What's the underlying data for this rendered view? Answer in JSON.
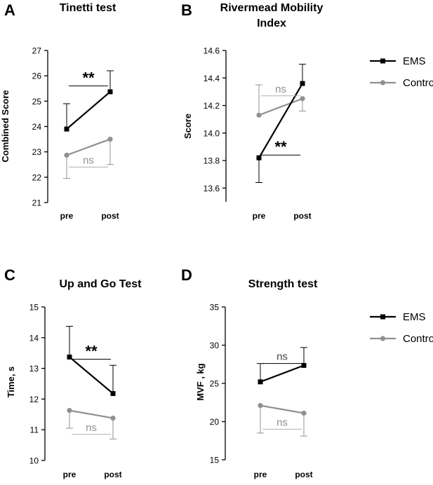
{
  "figure": {
    "legend": {
      "ems_label": "EMS",
      "control_label": "Control"
    }
  },
  "colors": {
    "ems": "#000000",
    "control": "#909090",
    "axis": "#000000",
    "annotation_ns": "#909090"
  },
  "chart_data": [
    {
      "panel_letter": "A",
      "type": "line",
      "title": "Tinetti test",
      "xlabel": "",
      "ylabel": "Combined Score",
      "categories": [
        "pre",
        "post"
      ],
      "ylim": [
        21,
        27
      ],
      "yticks": [
        21,
        22,
        23,
        24,
        25,
        26,
        27
      ],
      "series": [
        {
          "name": "EMS",
          "marker": "square",
          "values": [
            23.9,
            25.37
          ],
          "err_upper": [
            24.9,
            26.2
          ],
          "err_lower": [
            23.9,
            25.37
          ]
        },
        {
          "name": "Control",
          "marker": "circle",
          "values": [
            22.87,
            23.5
          ],
          "err_upper": [
            22.87,
            23.5
          ],
          "err_lower": [
            21.95,
            22.5
          ]
        }
      ],
      "annotations": [
        {
          "text": "**",
          "series": "EMS",
          "y": 25.6,
          "style": "star"
        },
        {
          "text": "ns",
          "series": "Control",
          "y": 22.4,
          "style": "ns"
        }
      ]
    },
    {
      "panel_letter": "B",
      "type": "line",
      "title": "Rivermead Mobility Index",
      "xlabel": "",
      "ylabel": "Score",
      "categories": [
        "pre",
        "post"
      ],
      "ylim": [
        13.5,
        14.6
      ],
      "yticks": [
        13.6,
        13.8,
        14.0,
        14.2,
        14.4,
        14.6
      ],
      "tick_decimals": 1,
      "series": [
        {
          "name": "EMS",
          "marker": "square",
          "values": [
            13.82,
            14.36
          ],
          "err_upper": [
            13.82,
            14.5
          ],
          "err_lower": [
            13.64,
            14.36
          ]
        },
        {
          "name": "Control",
          "marker": "circle",
          "values": [
            14.13,
            14.25
          ],
          "err_upper": [
            14.35,
            14.25
          ],
          "err_lower": [
            14.13,
            14.16
          ]
        }
      ],
      "annotations": [
        {
          "text": "**",
          "series": "EMS",
          "y": 13.84,
          "style": "star"
        },
        {
          "text": "ns",
          "series": "Control",
          "y": 14.27,
          "style": "ns"
        }
      ]
    },
    {
      "panel_letter": "C",
      "type": "line",
      "title": "Up and Go Test",
      "xlabel": "",
      "ylabel": "Time, s",
      "categories": [
        "pre",
        "post"
      ],
      "ylim": [
        10,
        15
      ],
      "yticks": [
        10,
        11,
        12,
        13,
        14,
        15
      ],
      "series": [
        {
          "name": "EMS",
          "marker": "square",
          "values": [
            13.37,
            12.18
          ],
          "err_upper": [
            14.37,
            13.1
          ],
          "err_lower": [
            13.37,
            12.18
          ]
        },
        {
          "name": "Control",
          "marker": "circle",
          "values": [
            11.63,
            11.38
          ],
          "err_upper": [
            11.63,
            11.38
          ],
          "err_lower": [
            11.05,
            10.7
          ]
        }
      ],
      "annotations": [
        {
          "text": "**",
          "series": "EMS",
          "y": 13.3,
          "style": "star"
        },
        {
          "text": "ns",
          "series": "Control",
          "y": 10.85,
          "style": "ns"
        }
      ]
    },
    {
      "panel_letter": "D",
      "type": "line",
      "title": "Strength test",
      "xlabel": "",
      "ylabel": "MVF , kg",
      "categories": [
        "pre",
        "post"
      ],
      "ylim": [
        15,
        35
      ],
      "yticks": [
        15,
        20,
        25,
        30,
        35
      ],
      "series": [
        {
          "name": "EMS",
          "marker": "square",
          "values": [
            25.2,
            27.35
          ],
          "err_upper": [
            27.6,
            29.7
          ],
          "err_lower": [
            25.2,
            27.35
          ]
        },
        {
          "name": "Control",
          "marker": "circle",
          "values": [
            22.1,
            21.1
          ],
          "err_upper": [
            22.1,
            21.1
          ],
          "err_lower": [
            18.5,
            18.1
          ]
        }
      ],
      "annotations": [
        {
          "text": "ns",
          "series": "EMS",
          "y": 27.6,
          "style": "ns_dark"
        },
        {
          "text": "ns",
          "series": "Control",
          "y": 19.0,
          "style": "ns"
        }
      ]
    }
  ]
}
